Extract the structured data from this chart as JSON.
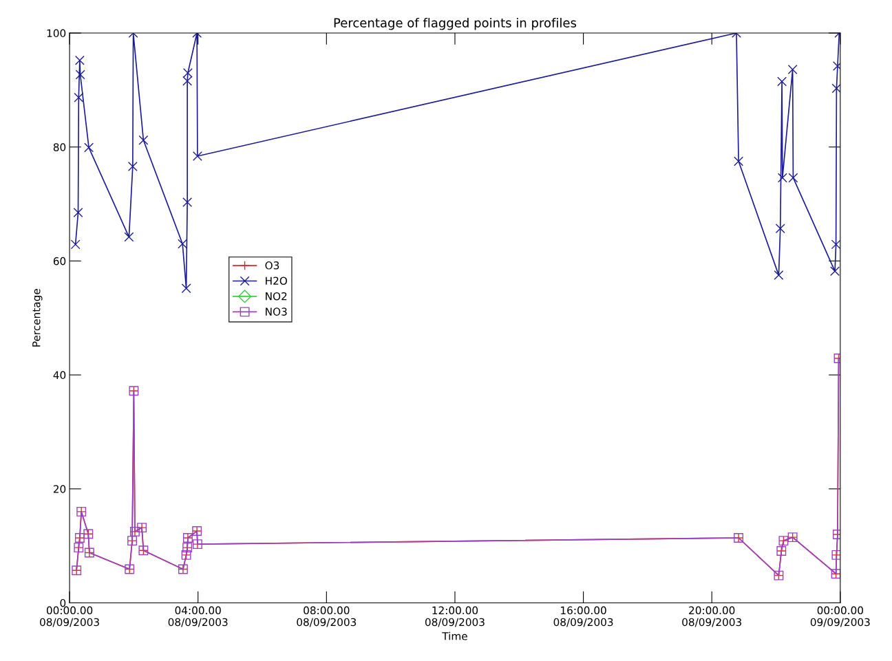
{
  "chart_data": {
    "type": "line",
    "title": "Percentage of flagged points in profiles",
    "xlabel": "Time",
    "ylabel": "Percentage",
    "xlim": [
      "2003-09-08T00:00",
      "2003-09-09T00:00"
    ],
    "ylim": [
      0,
      100
    ],
    "xticks": [
      {
        "value": "2003-09-08T00:00",
        "label": "00:00.00\n08/09/2003"
      },
      {
        "value": "2003-09-08T04:00",
        "label": "04:00.00\n08/09/2003"
      },
      {
        "value": "2003-09-08T08:00",
        "label": "08:00.00\n08/09/2003"
      },
      {
        "value": "2003-09-08T12:00",
        "label": "12:00.00\n08/09/2003"
      },
      {
        "value": "2003-09-08T16:00",
        "label": "16:00.00\n08/09/2003"
      },
      {
        "value": "2003-09-08T20:00",
        "label": "20:00.00\n08/09/2003"
      },
      {
        "value": "2003-09-09T00:00",
        "label": "00:00.00\n09/09/2003"
      }
    ],
    "yticks": [
      0,
      20,
      40,
      60,
      80,
      100
    ],
    "legend": "left",
    "series": [
      {
        "name": "O3",
        "color": "#d83020",
        "marker": "cross",
        "x": [
          "2003-09-08T00:13",
          "2003-09-08T00:17",
          "2003-09-08T00:19",
          "2003-09-08T00:22",
          "2003-09-08T00:35",
          "2003-09-08T00:37",
          "2003-09-08T01:52",
          "2003-09-08T01:57",
          "2003-09-08T02:00",
          "2003-09-08T02:02",
          "2003-09-08T02:15",
          "2003-09-08T02:18",
          "2003-09-08T03:32",
          "2003-09-08T03:38",
          "2003-09-08T03:40",
          "2003-09-08T03:41",
          "2003-09-08T03:58",
          "2003-09-08T03:59",
          "2003-09-08T20:50",
          "2003-09-08T22:05",
          "2003-09-08T22:10",
          "2003-09-08T22:14",
          "2003-09-08T22:31",
          "2003-09-08T23:52",
          "2003-09-08T23:53",
          "2003-09-08T23:55",
          "2003-09-08T23:57"
        ],
        "values": [
          5.7,
          9.7,
          11.4,
          16.0,
          12.1,
          8.8,
          5.9,
          10.9,
          37.2,
          12.5,
          13.2,
          9.2,
          5.9,
          8.4,
          9.7,
          11.4,
          12.6,
          10.3,
          11.4,
          4.8,
          9.1,
          10.9,
          11.5,
          5.1,
          8.4,
          12.0,
          42.9
        ]
      },
      {
        "name": "H2O",
        "color": "#1c1c94",
        "marker": "x",
        "x": [
          "2003-09-08T00:11",
          "2003-09-08T00:16",
          "2003-09-08T00:17",
          "2003-09-08T00:19",
          "2003-09-08T00:20",
          "2003-09-08T00:36",
          "2003-09-08T01:51",
          "2003-09-08T01:58",
          "2003-09-08T01:59",
          "2003-09-08T02:18",
          "2003-09-08T03:31",
          "2003-09-08T03:38",
          "2003-09-08T03:40",
          "2003-09-08T03:40",
          "2003-09-08T03:41",
          "2003-09-08T03:58",
          "2003-09-08T03:59",
          "2003-09-08T20:46",
          "2003-09-08T20:50",
          "2003-09-08T22:05",
          "2003-09-08T22:08",
          "2003-09-08T22:11",
          "2003-09-08T22:12",
          "2003-09-08T22:31",
          "2003-09-08T22:32",
          "2003-09-08T23:50",
          "2003-09-08T23:52",
          "2003-09-08T23:53",
          "2003-09-08T23:55",
          "2003-09-08T23:58"
        ],
        "values": [
          62.9,
          68.5,
          88.7,
          95.2,
          92.7,
          79.9,
          64.2,
          76.6,
          100,
          81.2,
          63.0,
          55.2,
          70.3,
          91.6,
          93.0,
          100,
          78.4,
          100,
          77.5,
          57.5,
          65.7,
          91.5,
          74.6,
          93.6,
          74.6,
          58.2,
          62.9,
          90.3,
          94.2,
          100
        ]
      },
      {
        "name": "NO2",
        "color": "#40c840",
        "marker": "diamond"
      },
      {
        "name": "NO3",
        "color": "#9a40c0",
        "marker": "square",
        "x": [
          "2003-09-08T00:13",
          "2003-09-08T00:17",
          "2003-09-08T00:19",
          "2003-09-08T00:22",
          "2003-09-08T00:35",
          "2003-09-08T00:37",
          "2003-09-08T01:52",
          "2003-09-08T01:57",
          "2003-09-08T02:00",
          "2003-09-08T02:02",
          "2003-09-08T02:15",
          "2003-09-08T02:18",
          "2003-09-08T03:32",
          "2003-09-08T03:38",
          "2003-09-08T03:40",
          "2003-09-08T03:41",
          "2003-09-08T03:58",
          "2003-09-08T03:59",
          "2003-09-08T20:50",
          "2003-09-08T22:05",
          "2003-09-08T22:10",
          "2003-09-08T22:14",
          "2003-09-08T22:31",
          "2003-09-08T23:52",
          "2003-09-08T23:53",
          "2003-09-08T23:55",
          "2003-09-08T23:57"
        ],
        "values": [
          5.7,
          9.7,
          11.4,
          16.0,
          12.1,
          8.8,
          5.9,
          10.9,
          37.2,
          12.5,
          13.2,
          9.2,
          5.9,
          8.4,
          9.7,
          11.4,
          12.6,
          10.3,
          11.4,
          4.8,
          9.1,
          10.9,
          11.5,
          5.1,
          8.4,
          12.0,
          42.9
        ]
      }
    ]
  }
}
